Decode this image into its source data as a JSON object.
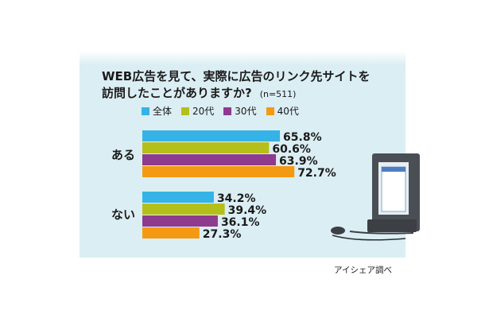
{
  "title_lines": [
    "WEB広告を見て、実際に広告のリンク先サイトを",
    "訪問したことがありますか?"
  ],
  "sample_note": "(n=511)",
  "source": "アイシェア調べ",
  "chart_data": {
    "type": "bar",
    "orientation": "horizontal",
    "categories": [
      "ある",
      "ない"
    ],
    "series": [
      {
        "name": "全体",
        "color": "#35b3e6",
        "values": [
          65.8,
          34.2
        ]
      },
      {
        "name": "20代",
        "color": "#b5bf1a",
        "values": [
          60.6,
          39.4
        ]
      },
      {
        "name": "30代",
        "color": "#8e3a8f",
        "values": [
          63.9,
          36.1
        ]
      },
      {
        "name": "40代",
        "color": "#f39a12",
        "values": [
          72.7,
          27.3
        ]
      }
    ],
    "value_labels": [
      [
        "65.8%",
        "34.2%"
      ],
      [
        "60.6%",
        "39.4%"
      ],
      [
        "63.9%",
        "36.1%"
      ],
      [
        "72.7%",
        "27.3%"
      ]
    ],
    "xlim": [
      0,
      100
    ],
    "legend_position": "top-left",
    "grid": false
  }
}
